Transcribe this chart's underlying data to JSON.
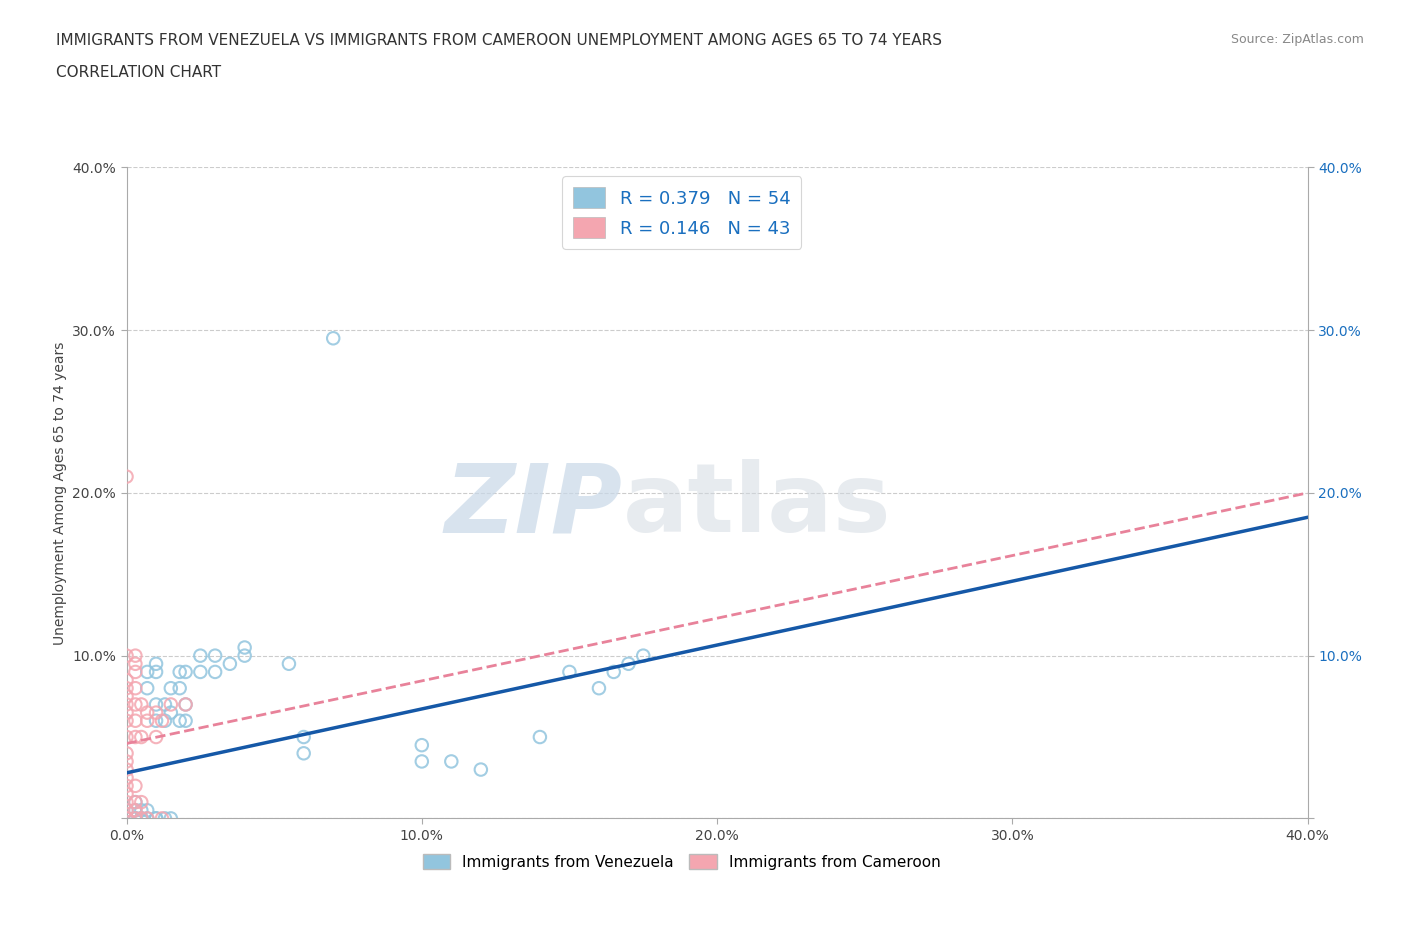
{
  "title_line1": "IMMIGRANTS FROM VENEZUELA VS IMMIGRANTS FROM CAMEROON UNEMPLOYMENT AMONG AGES 65 TO 74 YEARS",
  "title_line2": "CORRELATION CHART",
  "source": "Source: ZipAtlas.com",
  "ylabel": "Unemployment Among Ages 65 to 74 years",
  "xlim": [
    0.0,
    0.4
  ],
  "ylim": [
    0.0,
    0.4
  ],
  "xticks": [
    0.0,
    0.1,
    0.2,
    0.3,
    0.4
  ],
  "yticks": [
    0.0,
    0.1,
    0.2,
    0.3,
    0.4
  ],
  "xticklabels": [
    "0.0%",
    "10.0%",
    "20.0%",
    "30.0%",
    "40.0%"
  ],
  "right_yticklabels": [
    "",
    "10.0%",
    "20.0%",
    "30.0%",
    "40.0%"
  ],
  "left_yticklabels": [
    "",
    "10.0%",
    "20.0%",
    "30.0%",
    "40.0%"
  ],
  "venezuela_color": "#92C5DE",
  "cameroon_color": "#F4A6B0",
  "venezuela_line_color": "#1558A7",
  "cameroon_line_color": "#E8829A",
  "R_venezuela": 0.379,
  "N_venezuela": 54,
  "R_cameroon": 0.146,
  "N_cameroon": 43,
  "legend_label_venezuela": "Immigrants from Venezuela",
  "legend_label_cameroon": "Immigrants from Cameroon",
  "watermark_zip": "ZIP",
  "watermark_atlas": "atlas",
  "title_fontsize": 11,
  "axis_label_fontsize": 10,
  "tick_fontsize": 10,
  "venezuela_scatter": [
    [
      0.0,
      0.0
    ],
    [
      0.0,
      0.0
    ],
    [
      0.0,
      0.0
    ],
    [
      0.0,
      0.005
    ],
    [
      0.003,
      0.0
    ],
    [
      0.003,
      0.0
    ],
    [
      0.003,
      0.005
    ],
    [
      0.003,
      0.01
    ],
    [
      0.005,
      0.0
    ],
    [
      0.005,
      0.0
    ],
    [
      0.005,
      0.005
    ],
    [
      0.007,
      0.0
    ],
    [
      0.007,
      0.005
    ],
    [
      0.007,
      0.08
    ],
    [
      0.007,
      0.09
    ],
    [
      0.01,
      0.0
    ],
    [
      0.01,
      0.0
    ],
    [
      0.01,
      0.06
    ],
    [
      0.01,
      0.07
    ],
    [
      0.01,
      0.09
    ],
    [
      0.01,
      0.095
    ],
    [
      0.013,
      0.0
    ],
    [
      0.013,
      0.06
    ],
    [
      0.013,
      0.07
    ],
    [
      0.015,
      0.0
    ],
    [
      0.015,
      0.065
    ],
    [
      0.015,
      0.08
    ],
    [
      0.018,
      0.06
    ],
    [
      0.018,
      0.08
    ],
    [
      0.018,
      0.09
    ],
    [
      0.02,
      0.06
    ],
    [
      0.02,
      0.07
    ],
    [
      0.02,
      0.09
    ],
    [
      0.025,
      0.09
    ],
    [
      0.025,
      0.1
    ],
    [
      0.03,
      0.09
    ],
    [
      0.03,
      0.1
    ],
    [
      0.035,
      0.095
    ],
    [
      0.04,
      0.1
    ],
    [
      0.04,
      0.105
    ],
    [
      0.055,
      0.095
    ],
    [
      0.06,
      0.04
    ],
    [
      0.06,
      0.05
    ],
    [
      0.07,
      0.295
    ],
    [
      0.1,
      0.035
    ],
    [
      0.1,
      0.045
    ],
    [
      0.11,
      0.035
    ],
    [
      0.12,
      0.03
    ],
    [
      0.14,
      0.05
    ],
    [
      0.15,
      0.09
    ],
    [
      0.16,
      0.08
    ],
    [
      0.165,
      0.09
    ],
    [
      0.17,
      0.095
    ],
    [
      0.175,
      0.1
    ]
  ],
  "cameroon_scatter": [
    [
      0.0,
      0.0
    ],
    [
      0.0,
      0.0
    ],
    [
      0.0,
      0.005
    ],
    [
      0.0,
      0.01
    ],
    [
      0.0,
      0.015
    ],
    [
      0.0,
      0.02
    ],
    [
      0.0,
      0.025
    ],
    [
      0.0,
      0.03
    ],
    [
      0.0,
      0.035
    ],
    [
      0.0,
      0.04
    ],
    [
      0.0,
      0.05
    ],
    [
      0.0,
      0.06
    ],
    [
      0.0,
      0.065
    ],
    [
      0.0,
      0.07
    ],
    [
      0.0,
      0.075
    ],
    [
      0.0,
      0.08
    ],
    [
      0.0,
      0.085
    ],
    [
      0.0,
      0.1
    ],
    [
      0.0,
      0.21
    ],
    [
      0.003,
      0.0
    ],
    [
      0.003,
      0.005
    ],
    [
      0.003,
      0.01
    ],
    [
      0.003,
      0.02
    ],
    [
      0.003,
      0.05
    ],
    [
      0.003,
      0.06
    ],
    [
      0.003,
      0.07
    ],
    [
      0.003,
      0.08
    ],
    [
      0.003,
      0.09
    ],
    [
      0.003,
      0.095
    ],
    [
      0.003,
      0.1
    ],
    [
      0.005,
      0.0
    ],
    [
      0.005,
      0.01
    ],
    [
      0.005,
      0.05
    ],
    [
      0.005,
      0.07
    ],
    [
      0.007,
      0.0
    ],
    [
      0.007,
      0.06
    ],
    [
      0.007,
      0.065
    ],
    [
      0.01,
      0.05
    ],
    [
      0.01,
      0.065
    ],
    [
      0.012,
      0.0
    ],
    [
      0.012,
      0.06
    ],
    [
      0.015,
      0.07
    ],
    [
      0.02,
      0.07
    ]
  ],
  "grid_color": "#CCCCCC",
  "background_color": "#FFFFFF",
  "venezuela_line_x": [
    0.0,
    0.4
  ],
  "venezuela_line_y": [
    0.028,
    0.185
  ],
  "cameroon_line_x": [
    0.0,
    0.4
  ],
  "cameroon_line_y": [
    0.046,
    0.2
  ]
}
